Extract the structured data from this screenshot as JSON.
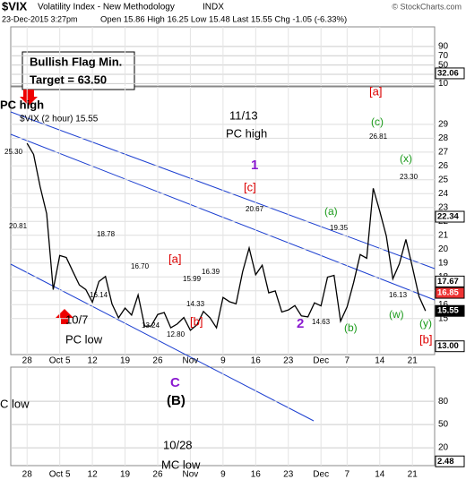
{
  "header": {
    "symbol": "$VIX",
    "name": "Volatility Index - New Methodology",
    "exchange": "INDX",
    "timestamp": "23-Dec-2015 3:27pm",
    "quote": "Open 15.86 High 16.25 Low 15.48 Last 15.55 Chg -1.05 (-6.33%)",
    "credit": "© StockCharts.com"
  },
  "chart_data": [
    {
      "type": "indicator",
      "ylim": [
        5,
        132
      ],
      "yticks": [
        10,
        30,
        50,
        70,
        90
      ],
      "last_value": 32.06
    },
    {
      "type": "line",
      "legend": "$VIX (2 hour) 15.55",
      "x": [
        0,
        1,
        2,
        3,
        4,
        5,
        6,
        7,
        8,
        9,
        10,
        11,
        12,
        13,
        14,
        15,
        16,
        17,
        18,
        19,
        20,
        21,
        22,
        23,
        24,
        25,
        26,
        27,
        28,
        29,
        30,
        31,
        32,
        33,
        34,
        35,
        36,
        37,
        38,
        39,
        40,
        41,
        42,
        43,
        44,
        45,
        46,
        47,
        48,
        49,
        50,
        51,
        52,
        53,
        54,
        55,
        56,
        57,
        58,
        59,
        60,
        61
      ],
      "series": [
        {
          "name": "$VIX",
          "color": "#000000",
          "values": [
            27.63,
            26.83,
            24.5,
            22.55,
            17.08,
            19.54,
            19.4,
            18.4,
            17.42,
            17.08,
            16.17,
            17.67,
            18.03,
            16.05,
            15.05,
            15.75,
            15.25,
            16.7,
            14.45,
            14.46,
            15.29,
            15.43,
            14.33,
            14.61,
            15.07,
            14.15,
            14.54,
            15.51,
            15.05,
            14.33,
            16.52,
            16.21,
            16.06,
            18.37,
            20.08,
            18.16,
            18.84,
            16.85,
            16.99,
            15.47,
            15.62,
            15.93,
            15.19,
            15.12,
            16.13,
            15.91,
            17.98,
            18.11,
            14.81,
            15.84,
            17.6,
            19.61,
            19.34,
            24.39,
            22.73,
            20.95,
            17.86,
            18.94,
            20.7,
            18.7,
            16.6,
            15.55
          ]
        }
      ],
      "xlim": [
        -2.5,
        62.4
      ],
      "xticks": [
        {
          "value": 0,
          "label": "28"
        },
        {
          "value": 5,
          "label": "Oct 5"
        },
        {
          "value": 10,
          "label": "12"
        },
        {
          "value": 15,
          "label": "19"
        },
        {
          "value": 20,
          "label": "26"
        },
        {
          "value": 25,
          "label": "Nov"
        },
        {
          "value": 30,
          "label": "9"
        },
        {
          "value": 35,
          "label": "16"
        },
        {
          "value": 40,
          "label": "23"
        },
        {
          "value": 45,
          "label": "Dec"
        },
        {
          "value": 49,
          "label": "7"
        },
        {
          "value": 54,
          "label": "14"
        },
        {
          "value": 59,
          "label": "21"
        }
      ],
      "ylim": [
        12.4,
        31.7
      ],
      "yticks": [
        15,
        16,
        17,
        18,
        19,
        20,
        21,
        22,
        23,
        24,
        25,
        26,
        27,
        28,
        29
      ],
      "level_labels": [
        {
          "value": 22.34,
          "label": "22.34"
        },
        {
          "value": 17.67,
          "label": "17.67"
        },
        {
          "value": 16.85,
          "label": "16.85"
        },
        {
          "value": 15.55,
          "label": "15.55"
        },
        {
          "value": 13,
          "label": "13.00"
        }
      ],
      "annotations": [
        "Bullish Flag Min.",
        "Target = 63.50",
        "PC high",
        "11/13",
        "PC high",
        "1",
        "[c]",
        "20.67",
        "(a)",
        "19.35",
        "(c)",
        "26.81",
        "(x)",
        "23.30",
        "[a]",
        "[a]",
        "[b]",
        "[b]",
        "(b)",
        "(w)",
        "(y)",
        "2",
        "10/7",
        "PC low",
        "25.30",
        "20.81",
        "18.78",
        "16.70",
        "16.39",
        "15.99",
        "16.14",
        "14.33",
        "13.24",
        "12.80",
        "14.63",
        "16.13"
      ]
    },
    {
      "type": "indicator",
      "ylim": [
        -3,
        124
      ],
      "yticks": [
        20,
        50,
        80
      ],
      "last_value": 2.48,
      "annotations": [
        "C low",
        "C",
        "(B)",
        "10/28",
        "MC low"
      ]
    }
  ]
}
